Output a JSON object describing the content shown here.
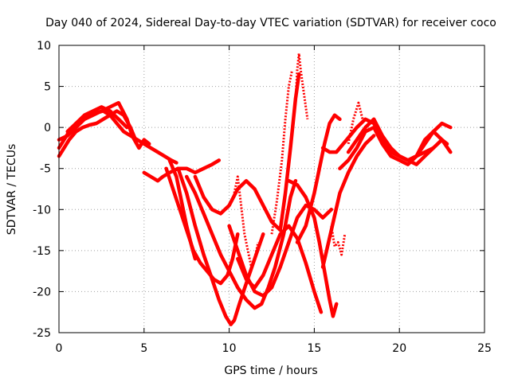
{
  "chart_data": {
    "type": "scatter",
    "title": "Day 040 of 2024, Sidereal Day-to-day VTEC variation (SDTVAR) for receiver coco",
    "xlabel": "GPS time / hours",
    "ylabel": "SDTVAR / TECUs",
    "xlim": [
      0,
      25
    ],
    "ylim": [
      -25,
      10
    ],
    "xticks": [
      "0",
      "5",
      "10",
      "15",
      "20",
      "25"
    ],
    "yticks": [
      "-25",
      "-20",
      "-15",
      "-10",
      "-5",
      "0",
      "5",
      "10"
    ],
    "grid": true,
    "marker": "+",
    "color": "#ff0000",
    "series": [
      {
        "name": "arc-1",
        "x": [
          0.0,
          0.3,
          0.6,
          1.0,
          1.4,
          1.8,
          2.2,
          2.6,
          3.0,
          3.4,
          3.8,
          4.2,
          4.6,
          5.0,
          5.4,
          5.8,
          6.2,
          6.6,
          6.9
        ],
        "y": [
          -2.5,
          -1.5,
          -0.5,
          0.5,
          1.0,
          1.5,
          1.8,
          2.0,
          1.5,
          0.5,
          -0.5,
          -1.0,
          -1.5,
          -2.0,
          -2.5,
          -3.0,
          -3.5,
          -4.0,
          -4.3
        ]
      },
      {
        "name": "arc-2",
        "x": [
          0.0,
          0.3,
          0.6,
          1.0,
          1.4,
          1.8,
          2.2,
          2.6,
          3.0,
          3.4,
          3.8,
          4.2,
          4.5
        ],
        "y": [
          -3.5,
          -2.5,
          -1.5,
          -0.5,
          0.0,
          0.3,
          0.5,
          1.0,
          1.5,
          2.0,
          1.5,
          0.0,
          -1.5
        ]
      },
      {
        "name": "arc-3",
        "x": [
          0.0,
          0.5,
          1.0,
          1.5,
          2.0,
          2.5,
          3.0,
          3.5,
          4.0,
          4.3,
          4.7,
          5.0,
          5.3
        ],
        "y": [
          -1.5,
          -1.0,
          0.0,
          1.0,
          1.5,
          2.0,
          2.5,
          3.0,
          1.0,
          -1.0,
          -2.5,
          -1.5,
          -2.0
        ]
      },
      {
        "name": "arc-4",
        "x": [
          0.5,
          1.0,
          1.5,
          2.0,
          2.5,
          3.0,
          3.5,
          4.0
        ],
        "y": [
          -0.5,
          0.5,
          1.5,
          2.0,
          2.5,
          2.0,
          1.0,
          0.0
        ]
      },
      {
        "name": "arc-5",
        "x": [
          5.0,
          5.4,
          5.8,
          6.1,
          6.5,
          7.0,
          7.5,
          8.0,
          8.5,
          9.0,
          9.4
        ],
        "y": [
          -5.5,
          -6.0,
          -6.5,
          -6.0,
          -5.5,
          -5.0,
          -5.0,
          -5.5,
          -5.0,
          -4.5,
          -4.0
        ]
      },
      {
        "name": "arc-6",
        "x": [
          6.5,
          6.9,
          7.2,
          7.5,
          7.8,
          8.0
        ],
        "y": [
          -4.0,
          -6.0,
          -9.0,
          -12.0,
          -14.5,
          -16.0
        ]
      },
      {
        "name": "arc-7",
        "x": [
          6.3,
          6.7,
          7.1,
          7.5,
          7.9,
          8.3,
          8.7,
          9.1,
          9.5,
          9.9,
          10.2,
          10.5
        ],
        "y": [
          -5.0,
          -7.5,
          -10.0,
          -12.5,
          -15.0,
          -16.5,
          -17.5,
          -18.5,
          -19.0,
          -18.0,
          -16.0,
          -13.0
        ]
      },
      {
        "name": "arc-8",
        "x": [
          7.0,
          7.5,
          8.0,
          8.5,
          9.0,
          9.4,
          9.8,
          10.1,
          10.3,
          10.6,
          11.0,
          11.5,
          12.0
        ],
        "y": [
          -5.0,
          -8.0,
          -12.0,
          -15.5,
          -18.5,
          -21.0,
          -23.0,
          -24.0,
          -23.5,
          -21.5,
          -19.0,
          -16.0,
          -13.0
        ]
      },
      {
        "name": "arc-9",
        "x": [
          7.5,
          8.0,
          8.5,
          9.0,
          9.5,
          10.0,
          10.5,
          11.0,
          11.5,
          11.9,
          12.3,
          12.7,
          13.2,
          13.6,
          13.9
        ],
        "y": [
          -6.0,
          -8.0,
          -10.5,
          -13.0,
          -15.5,
          -17.5,
          -19.5,
          -21.0,
          -22.0,
          -21.5,
          -19.5,
          -17.0,
          -13.0,
          -8.5,
          -6.5
        ]
      },
      {
        "name": "arc-10",
        "x": [
          8.0,
          8.5,
          9.0,
          9.5,
          10.0,
          10.5,
          11.0,
          11.5,
          12.0,
          12.5,
          13.0,
          13.3,
          13.6,
          13.9,
          14.1
        ],
        "y": [
          -6.0,
          -8.5,
          -10.0,
          -10.5,
          -9.5,
          -7.5,
          -6.5,
          -7.5,
          -9.5,
          -11.5,
          -12.5,
          -8.0,
          -2.5,
          3.5,
          6.5
        ]
      },
      {
        "name": "arc-11",
        "x": [
          10.0,
          10.5,
          11.0,
          11.5,
          12.0,
          12.5,
          13.0,
          13.5,
          14.0,
          14.5,
          15.0,
          15.5,
          16.0
        ],
        "y": [
          -12.0,
          -15.0,
          -18.0,
          -20.0,
          -20.5,
          -19.5,
          -17.0,
          -14.0,
          -11.0,
          -9.5,
          -10.0,
          -11.0,
          -10.0
        ]
      },
      {
        "name": "arc-12",
        "x": [
          10.5,
          11.0,
          11.5,
          12.0,
          12.5,
          13.0,
          13.5,
          14.0,
          14.5,
          15.0,
          15.4
        ],
        "y": [
          -16.0,
          -18.5,
          -19.5,
          -18.0,
          -15.5,
          -13.0,
          -12.0,
          -13.5,
          -16.5,
          -20.0,
          -22.5
        ]
      },
      {
        "name": "arc-13",
        "x": [
          13.5,
          14.0,
          14.5,
          15.0,
          15.3,
          15.6,
          15.9,
          16.1,
          16.3
        ],
        "y": [
          -6.5,
          -7.0,
          -8.5,
          -11.0,
          -14.0,
          -17.5,
          -21.0,
          -23.0,
          -21.5
        ]
      },
      {
        "name": "arc-14",
        "x": [
          14.0,
          14.5,
          15.0,
          15.3,
          15.6,
          15.9,
          16.2,
          16.5
        ],
        "y": [
          -14.0,
          -12.0,
          -8.0,
          -5.0,
          -2.0,
          0.5,
          1.5,
          1.0
        ]
      },
      {
        "name": "arc-15",
        "x": [
          15.5,
          16.0,
          16.5,
          17.0,
          17.5,
          18.0,
          18.5
        ],
        "y": [
          -17.0,
          -12.5,
          -8.0,
          -5.5,
          -3.5,
          -2.0,
          -1.0
        ]
      },
      {
        "name": "arc-16",
        "x": [
          15.5,
          15.9,
          16.3,
          16.7,
          17.1,
          17.5,
          18.0,
          18.5,
          19.0,
          19.5,
          20.0,
          20.5,
          21.0,
          21.5,
          22.0,
          22.5,
          23.0
        ],
        "y": [
          -2.5,
          -3.0,
          -3.0,
          -2.0,
          -1.0,
          0.0,
          1.0,
          0.5,
          -1.5,
          -3.0,
          -3.5,
          -4.0,
          -3.5,
          -2.0,
          -0.5,
          0.5,
          0.0
        ]
      },
      {
        "name": "arc-17",
        "x": [
          16.5,
          17.0,
          17.5,
          18.0,
          18.5,
          19.0,
          19.5,
          20.0,
          20.5,
          21.0,
          21.5,
          22.0,
          22.5,
          23.0
        ],
        "y": [
          -5.0,
          -4.0,
          -2.5,
          -0.5,
          0.0,
          -2.0,
          -3.5,
          -4.0,
          -4.5,
          -3.5,
          -1.5,
          -0.5,
          -1.5,
          -3.0
        ]
      },
      {
        "name": "arc-18",
        "x": [
          17.0,
          17.5,
          18.0,
          18.5,
          19.0,
          19.5,
          20.0,
          20.5,
          21.0,
          21.5,
          22.0
        ],
        "y": [
          -3.0,
          -1.5,
          0.0,
          1.0,
          -1.0,
          -2.5,
          -3.5,
          -4.0,
          -4.5,
          -3.5,
          -2.5
        ]
      },
      {
        "name": "arc-19",
        "x": [
          19.5,
          20.0,
          20.5,
          21.0,
          21.5,
          22.0,
          22.5,
          22.8
        ],
        "y": [
          -3.0,
          -3.5,
          -4.0,
          -3.5,
          -3.0,
          -2.5,
          -1.5,
          -2.0
        ]
      }
    ],
    "spikes": [
      {
        "name": "spike-1",
        "x": [
          10.3,
          10.5,
          10.7,
          10.9,
          11.1,
          11.3,
          11.5,
          11.7
        ],
        "y": [
          -8.0,
          -6.0,
          -9.5,
          -13.0,
          -15.0,
          -17.0,
          -16.0,
          -14.0
        ]
      },
      {
        "name": "spike-2",
        "x": [
          12.5,
          12.8,
          13.1,
          13.3,
          13.5,
          13.7
        ],
        "y": [
          -13.0,
          -9.0,
          -4.0,
          1.0,
          5.0,
          7.0
        ]
      },
      {
        "name": "spike-3",
        "x": [
          13.9,
          14.0,
          14.1,
          14.2,
          14.4,
          14.6
        ],
        "y": [
          3.0,
          7.0,
          9.0,
          7.0,
          4.0,
          1.0
        ]
      },
      {
        "name": "spike-4",
        "x": [
          16.0,
          16.2,
          16.4,
          16.6,
          16.8
        ],
        "y": [
          -12.0,
          -14.5,
          -14.0,
          -15.5,
          -13.0
        ]
      },
      {
        "name": "spike-5",
        "x": [
          17.0,
          17.3,
          17.6,
          17.9
        ],
        "y": [
          -2.0,
          1.0,
          3.0,
          0.5
        ]
      }
    ]
  }
}
